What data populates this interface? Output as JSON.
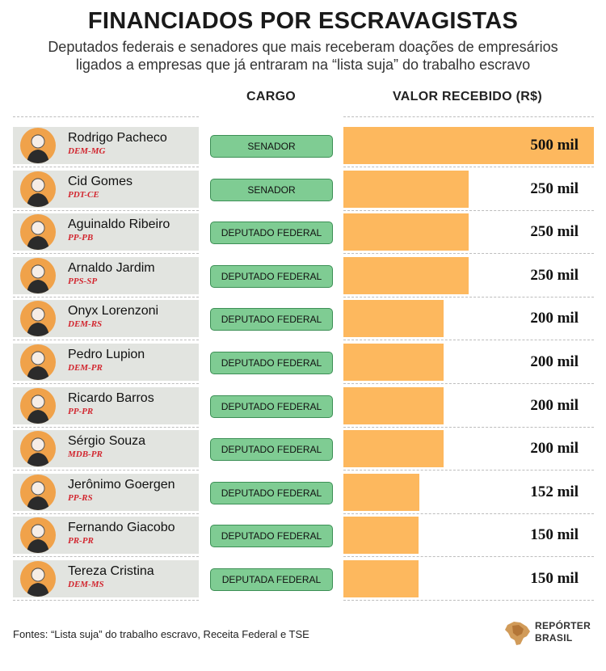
{
  "title": "FINANCIADOS POR ESCRAVAGISTAS",
  "subtitle_line1": "Deputados federais e senadores que mais receberam doações de empresários",
  "subtitle_line2": "ligados a empresas que já entraram na “lista suja” do trabalho escravo",
  "headers": {
    "cargo": "CARGO",
    "valor": "VALOR RECEBIDO (R$)"
  },
  "sources": "Fontes: “Lista suja” do trabalho escravo, Receita Federal e TSE",
  "logo": {
    "line1": "REPÓRTER",
    "line2": "BRASIL"
  },
  "colors": {
    "bar": "#fdb85e",
    "cargo_fill": "#7fcc93",
    "name_bg": "#e2e4e0",
    "party": "#d2262f",
    "avatar_ring": "#f0a24a"
  },
  "chart_data": {
    "type": "bar",
    "title": "FINANCIADOS POR ESCRAVAGISTAS",
    "xlabel": "",
    "ylabel": "VALOR RECEBIDO (R$)",
    "categories": [
      "Rodrigo Pacheco",
      "Cid Gomes",
      "Aguinaldo Ribeiro",
      "Arnaldo Jardim",
      "Onyx Lorenzoni",
      "Pedro Lupion",
      "Ricardo Barros",
      "Sérgio Souza",
      "Jerônimo Goergen",
      "Fernando Giacobo",
      "Tereza Cristina"
    ],
    "values": [
      500,
      250,
      250,
      250,
      200,
      200,
      200,
      200,
      152,
      150,
      150
    ],
    "xlim": [
      0,
      500
    ],
    "rows": [
      {
        "name": "Rodrigo Pacheco",
        "party": "DEM-MG",
        "cargo": "SENADOR",
        "value": 500,
        "value_label": "500 mil"
      },
      {
        "name": "Cid Gomes",
        "party": "PDT-CE",
        "cargo": "SENADOR",
        "value": 250,
        "value_label": "250 mil"
      },
      {
        "name": "Aguinaldo Ribeiro",
        "party": "PP-PB",
        "cargo": "DEPUTADO FEDERAL",
        "value": 250,
        "value_label": "250 mil"
      },
      {
        "name": "Arnaldo Jardim",
        "party": "PPS-SP",
        "cargo": "DEPUTADO FEDERAL",
        "value": 250,
        "value_label": "250 mil"
      },
      {
        "name": "Onyx Lorenzoni",
        "party": "DEM-RS",
        "cargo": "DEPUTADO FEDERAL",
        "value": 200,
        "value_label": "200 mil"
      },
      {
        "name": "Pedro Lupion",
        "party": "DEM-PR",
        "cargo": "DEPUTADO FEDERAL",
        "value": 200,
        "value_label": "200 mil"
      },
      {
        "name": "Ricardo Barros",
        "party": "PP-PR",
        "cargo": "DEPUTADO FEDERAL",
        "value": 200,
        "value_label": "200 mil"
      },
      {
        "name": "Sérgio Souza",
        "party": "MDB-PR",
        "cargo": "DEPUTADO FEDERAL",
        "value": 200,
        "value_label": "200 mil"
      },
      {
        "name": "Jerônimo Goergen",
        "party": "PP-RS",
        "cargo": "DEPUTADO FEDERAL",
        "value": 152,
        "value_label": "152 mil"
      },
      {
        "name": "Fernando Giacobo",
        "party": "PR-PR",
        "cargo": "DEPUTADO FEDERAL",
        "value": 150,
        "value_label": "150 mil"
      },
      {
        "name": "Tereza Cristina",
        "party": "DEM-MS",
        "cargo": "DEPUTADA FEDERAL",
        "value": 150,
        "value_label": "150 mil"
      }
    ]
  }
}
